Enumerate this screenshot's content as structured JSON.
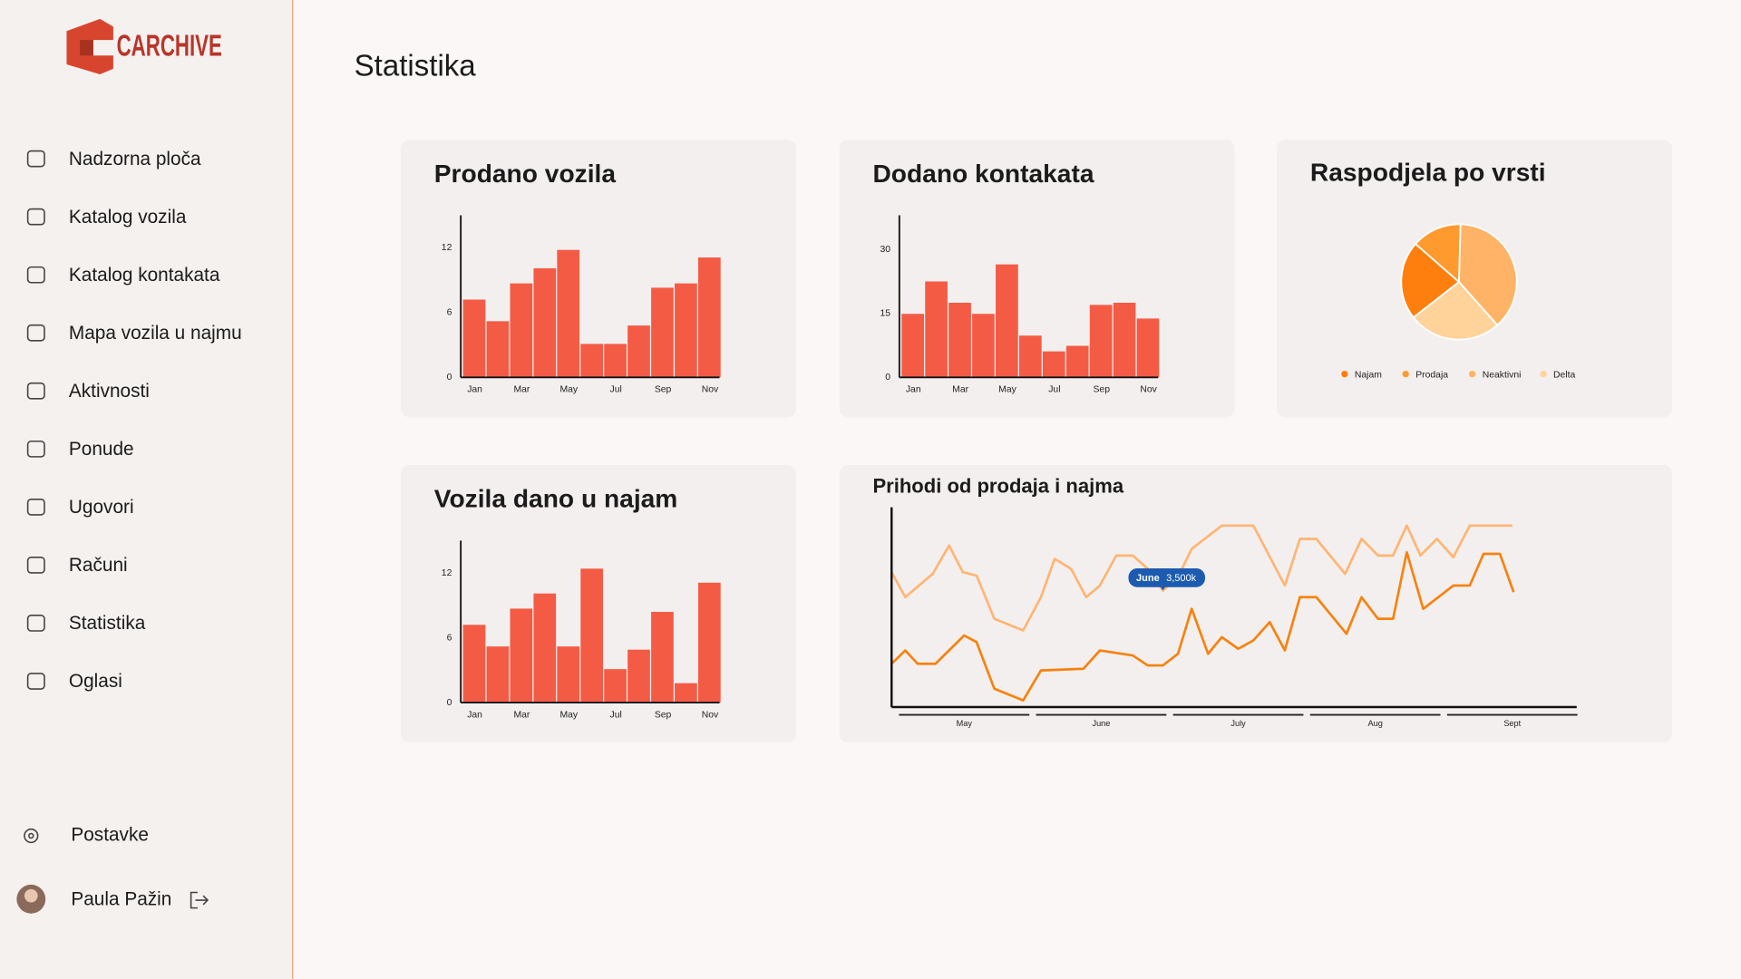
{
  "sidebar": {
    "logo": "CARCHIVE",
    "menu": [
      "Nadzorna ploča",
      "Katalog vozila",
      "Katalog kontakata",
      "Mapa vozila u najmu",
      "Aktivnosti",
      "Ponude",
      "Ugovori",
      "Računi",
      "Statistika",
      "Oglasi"
    ],
    "settings": "Postavke",
    "user": "Paula Pažin"
  },
  "page_title": "Statistika",
  "chart_data": [
    {
      "type": "bar",
      "title": "Prodano vozila",
      "color": "#f45b45",
      "categories": [
        "Jan",
        null,
        "Mar",
        null,
        "May",
        null,
        "Jul",
        null,
        "Sep",
        null,
        "Nov"
      ],
      "values": [
        7.2,
        5.2,
        8.7,
        10.1,
        11.8,
        3.1,
        3.1,
        4.8,
        8.3,
        8.7,
        11.1
      ],
      "ylim": [
        0,
        15
      ],
      "yticks": [
        0,
        6,
        12
      ]
    },
    {
      "type": "bar",
      "title": "Dodano kontakata",
      "color": "#f45b45",
      "categories": [
        "Jan",
        null,
        "Mar",
        null,
        "May",
        null,
        "Jul",
        null,
        "Sep",
        null,
        "Nov"
      ],
      "values": [
        14.9,
        22.5,
        17.5,
        14.9,
        26.5,
        9.8,
        6.1,
        7.4,
        17,
        17.5,
        13.8
      ],
      "ylim": [
        0,
        38
      ],
      "yticks": [
        0,
        15,
        30
      ]
    },
    {
      "type": "pie",
      "title": "Raspodjela po vrsti",
      "categories": [
        "Najam",
        "Prodaja",
        "Neaktivni",
        "Delta"
      ],
      "values": [
        22,
        14,
        38,
        26
      ],
      "colors": [
        "#ff7f0e",
        "#ff9a2e",
        "#ffb366",
        "#ffd39a"
      ]
    },
    {
      "type": "bar",
      "title": "Vozila dano u najam",
      "color": "#f45b45",
      "categories": [
        "Jan",
        null,
        "Mar",
        null,
        "May",
        null,
        "Jul",
        null,
        "Sep",
        null,
        "Nov"
      ],
      "values": [
        7.2,
        5.2,
        8.7,
        10.1,
        5.2,
        12.4,
        3.1,
        4.9,
        8.4,
        1.8,
        11.1
      ],
      "ylim": [
        0,
        15
      ],
      "yticks": [
        0,
        6,
        12
      ]
    },
    {
      "type": "line",
      "title": "Prihodi od prodaja i najma",
      "xlim": [
        -0.03,
        4.97
      ],
      "ylim": [
        0,
        6000
      ],
      "xticks": [
        {
          "value": 0.5,
          "label": "May"
        },
        {
          "value": 1.5,
          "label": "June"
        },
        {
          "value": 2.5,
          "label": "July"
        },
        {
          "value": 3.5,
          "label": "Aug"
        },
        {
          "value": 4.5,
          "label": "Sept"
        }
      ],
      "series": [
        {
          "color": "#ffb574",
          "x": [
            -0.03,
            0.07,
            0.27,
            0.39,
            0.49,
            0.59,
            0.72,
            0.93,
            1.06,
            1.16,
            1.28,
            1.39,
            1.49,
            1.61,
            1.73,
            1.84,
            1.95,
            2.06,
            2.16,
            2.38,
            2.61,
            2.84,
            2.95,
            3.07,
            3.28,
            3.4,
            3.52,
            3.63,
            3.73,
            3.83,
            3.95,
            4.07,
            4.19,
            4.5
          ],
          "values": [
            4050,
            3300,
            4000,
            4850,
            4050,
            3950,
            2650,
            2300,
            3300,
            4450,
            4150,
            3300,
            3650,
            4550,
            4550,
            4150,
            3500,
            3900,
            4750,
            5450,
            5450,
            3650,
            5050,
            5050,
            4000,
            5050,
            4550,
            4550,
            5450,
            4550,
            5050,
            4500,
            5450,
            5450
          ]
        },
        {
          "color": "#f7820f",
          "x": [
            -0.03,
            0.07,
            0.16,
            0.29,
            0.5,
            0.59,
            0.72,
            0.93,
            1.06,
            1.37,
            1.49,
            1.73,
            1.84,
            1.95,
            2.06,
            2.16,
            2.28,
            2.38,
            2.5,
            2.61,
            2.73,
            2.84,
            2.95,
            3.07,
            3.29,
            3.4,
            3.52,
            3.63,
            3.73,
            3.85,
            4.07,
            4.19,
            4.29,
            4.41,
            4.51
          ],
          "values": [
            1300,
            1700,
            1300,
            1300,
            2150,
            1950,
            550,
            200,
            1100,
            1150,
            1700,
            1550,
            1250,
            1250,
            1600,
            2950,
            1600,
            2100,
            1750,
            2000,
            2550,
            1700,
            3300,
            3300,
            2200,
            3300,
            2650,
            2650,
            4650,
            2950,
            3650,
            3650,
            4600,
            4600,
            3450
          ]
        }
      ],
      "annotation": {
        "series": 0,
        "index": 16,
        "title": "June",
        "text": "3,500k"
      }
    }
  ]
}
